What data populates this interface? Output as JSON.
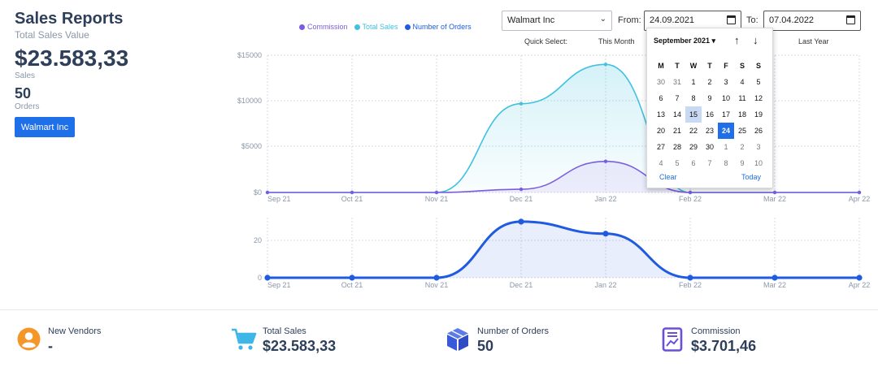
{
  "header": {
    "title": "Sales Reports",
    "subtitle": "Total Sales Value",
    "sales_value": "$23.583,33",
    "sales_label": "Sales",
    "orders_value": "50",
    "orders_label": "Orders",
    "vendor_button": "Walmart Inc"
  },
  "legend": [
    {
      "label": "Commission",
      "color": "#7b5ce0"
    },
    {
      "label": "Total Sales",
      "color": "#3fc1e0"
    },
    {
      "label": "Number of Orders",
      "color": "#1e5be0"
    }
  ],
  "controls": {
    "vendor_select": "Walmart Inc",
    "from_label": "From:",
    "from_value": "24.09.2021",
    "to_label": "To:",
    "to_value": "07.04.2022",
    "quick_select_label": "Quick Select:",
    "quick_this_month": "This Month",
    "quick_last_year": "Last Year"
  },
  "datepicker": {
    "month_label": "September 2021 ▾",
    "weekdays": [
      "M",
      "T",
      "W",
      "T",
      "F",
      "S",
      "S"
    ],
    "weeks": [
      [
        "30",
        "31",
        "1",
        "2",
        "3",
        "4",
        "5"
      ],
      [
        "6",
        "7",
        "8",
        "9",
        "10",
        "11",
        "12"
      ],
      [
        "13",
        "14",
        "15",
        "16",
        "17",
        "18",
        "19"
      ],
      [
        "20",
        "21",
        "22",
        "23",
        "24",
        "25",
        "26"
      ],
      [
        "27",
        "28",
        "29",
        "30",
        "1",
        "2",
        "3"
      ],
      [
        "4",
        "5",
        "6",
        "7",
        "8",
        "9",
        "10"
      ]
    ],
    "highlighted_day": "15",
    "selected_day": "24",
    "clear": "Clear",
    "today": "Today"
  },
  "chart_data": [
    {
      "type": "area",
      "categories": [
        "Sep 21",
        "Oct 21",
        "Nov 21",
        "Dec 21",
        "Jan 22",
        "Feb 22",
        "Mar 22",
        "Apr 22"
      ],
      "y_ticks": [
        "$15000",
        "$10000",
        "$5000",
        "$0"
      ],
      "ylim": [
        0,
        15000
      ],
      "series": [
        {
          "name": "Total Sales",
          "color": "#3fc1e0",
          "values": [
            0,
            0,
            0,
            9700,
            14000,
            0,
            0,
            0
          ]
        },
        {
          "name": "Commission",
          "color": "#7b5ce0",
          "values": [
            0,
            0,
            0,
            350,
            3400,
            0,
            0,
            0
          ]
        }
      ],
      "grid": true
    },
    {
      "type": "area",
      "categories": [
        "Sep 21",
        "Oct 21",
        "Nov 21",
        "Dec 21",
        "Jan 22",
        "Feb 22",
        "Mar 22",
        "Apr 22"
      ],
      "y_ticks": [
        "20",
        "0"
      ],
      "ylim": [
        0,
        30
      ],
      "series": [
        {
          "name": "Number of Orders",
          "color": "#1e5be0",
          "values": [
            0,
            0,
            0,
            28,
            22,
            0,
            0,
            0
          ]
        }
      ],
      "grid": true
    }
  ],
  "stats": [
    {
      "label": "New Vendors",
      "value": "-",
      "icon": "user-circle-icon",
      "color": "#f5962a"
    },
    {
      "label": "Total Sales",
      "value": "$23.583,33",
      "icon": "cart-icon",
      "color": "#3fb6e8"
    },
    {
      "label": "Number of Orders",
      "value": "50",
      "icon": "box-icon",
      "color": "#3a5bd9"
    },
    {
      "label": "Commission",
      "value": "$3.701,46",
      "icon": "invoice-icon",
      "color": "#6b4fd8"
    }
  ]
}
